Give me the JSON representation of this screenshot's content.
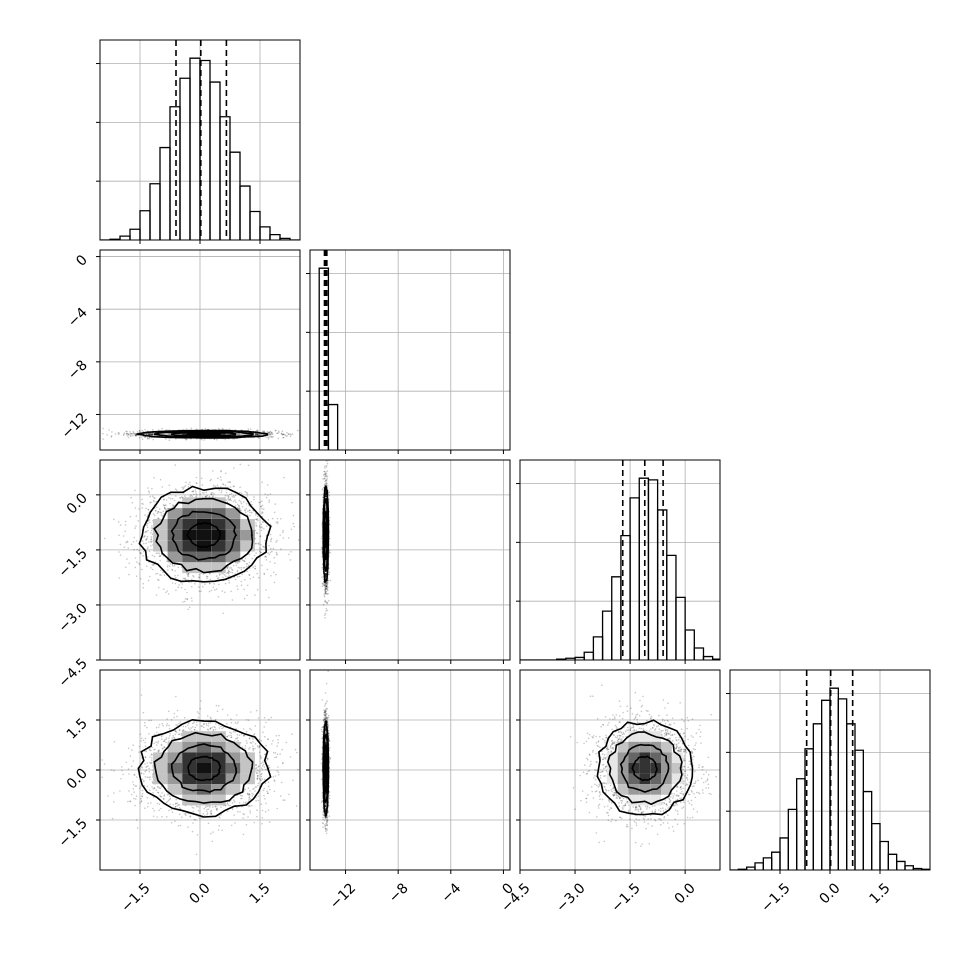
{
  "chart_data": {
    "type": "corner",
    "title": "",
    "grid": true,
    "n_params": 4,
    "params": [
      {
        "label": "",
        "range": [
          -2.5,
          2.5
        ],
        "ticks": [
          -1.5,
          0.0,
          1.5
        ],
        "tick_labels": [
          "−1.5",
          "0.0",
          "1.5"
        ],
        "mean": 0.1,
        "sd": 0.8,
        "quantiles": [
          -0.6,
          0.02,
          0.66
        ]
      },
      {
        "label": "",
        "range": [
          -14.7,
          0.5
        ],
        "ticks": [
          -12,
          -8,
          -4,
          0
        ],
        "tick_labels": [
          "−12",
          "−8",
          "−4",
          "0"
        ],
        "mean": -13.5,
        "sd": 0.12,
        "quantiles": [
          -13.6,
          -13.5,
          -13.42
        ]
      },
      {
        "label": "",
        "range": [
          -4.5,
          0.95
        ],
        "ticks": [
          -4.5,
          -3.0,
          -1.5,
          0.0
        ],
        "tick_labels": [
          "−4.5",
          "−3.0",
          "−1.5",
          "0.0"
        ],
        "mean": -1.1,
        "sd": 0.65,
        "quantiles": [
          -1.7,
          -1.1,
          -0.6
        ]
      },
      {
        "label": "",
        "range": [
          -3.0,
          3.0
        ],
        "ticks": [
          -1.5,
          0.0,
          1.5
        ],
        "tick_labels": [
          "−1.5",
          "0.0",
          "1.5"
        ],
        "mean": 0.05,
        "sd": 0.7,
        "quantiles": [
          -0.7,
          0.02,
          0.68
        ]
      }
    ],
    "histograms": [
      {
        "param": 0,
        "bin_edges": [
          -2.5,
          -2.25,
          -2.0,
          -1.75,
          -1.5,
          -1.25,
          -1.0,
          -0.75,
          -0.5,
          -0.25,
          0.0,
          0.25,
          0.5,
          0.75,
          1.0,
          1.25,
          1.5,
          1.75,
          2.0,
          2.25,
          2.5
        ],
        "counts": [
          0,
          1,
          5,
          14,
          38,
          73,
          120,
          173,
          210,
          236,
          233,
          205,
          160,
          114,
          70,
          37,
          17,
          7,
          2,
          0
        ]
      },
      {
        "param": 1,
        "bin_edges": [
          -14.7,
          -14.0,
          -13.3,
          -12.6
        ],
        "counts": [
          0,
          240,
          60
        ]
      },
      {
        "param": 2,
        "bin_edges": [
          -4.5,
          -4.25,
          -4.0,
          -3.75,
          -3.5,
          -3.25,
          -3.0,
          -2.75,
          -2.5,
          -2.25,
          -2.0,
          -1.75,
          -1.5,
          -1.25,
          -1.0,
          -0.75,
          -0.5,
          -0.25,
          0.0,
          0.25,
          0.5,
          0.75,
          0.95
        ],
        "counts": [
          0,
          0,
          0,
          0,
          1,
          2,
          3,
          9,
          27,
          57,
          97,
          145,
          189,
          212,
          210,
          175,
          122,
          73,
          35,
          14,
          4,
          1
        ]
      },
      {
        "param": 3,
        "bin_edges": [
          -3.0,
          -2.75,
          -2.5,
          -2.25,
          -2.0,
          -1.75,
          -1.5,
          -1.25,
          -1.0,
          -0.75,
          -0.5,
          -0.25,
          0.0,
          0.25,
          0.5,
          0.75,
          1.0,
          1.25,
          1.5,
          1.75,
          2.0,
          2.25,
          2.5,
          2.75,
          3.0
        ],
        "counts": [
          0,
          1,
          4,
          10,
          17,
          25,
          45,
          85,
          128,
          170,
          205,
          238,
          255,
          240,
          205,
          168,
          110,
          65,
          40,
          22,
          12,
          6,
          2,
          1
        ]
      }
    ],
    "pairs": [
      {
        "x_param": 0,
        "y_param": 1,
        "rx": 0.8,
        "ry": 0.14
      },
      {
        "x_param": 0,
        "y_param": 2,
        "rx": 0.8,
        "ry": 0.65
      },
      {
        "x_param": 1,
        "y_param": 2,
        "rx": 0.1,
        "ry": 0.65
      },
      {
        "x_param": 0,
        "y_param": 3,
        "rx": 0.8,
        "ry": 0.7
      },
      {
        "x_param": 1,
        "y_param": 3,
        "rx": 0.1,
        "ry": 0.7
      },
      {
        "x_param": 2,
        "y_param": 3,
        "rx": 0.65,
        "ry": 0.7
      }
    ],
    "contour_levels_sigma": [
      0.5,
      1.0,
      1.5,
      2.0
    ],
    "colors": {
      "hist": "#000000",
      "contour": "#000000",
      "density_max": "#000000",
      "points": "#000000",
      "grid": "#b0b0b0"
    }
  }
}
